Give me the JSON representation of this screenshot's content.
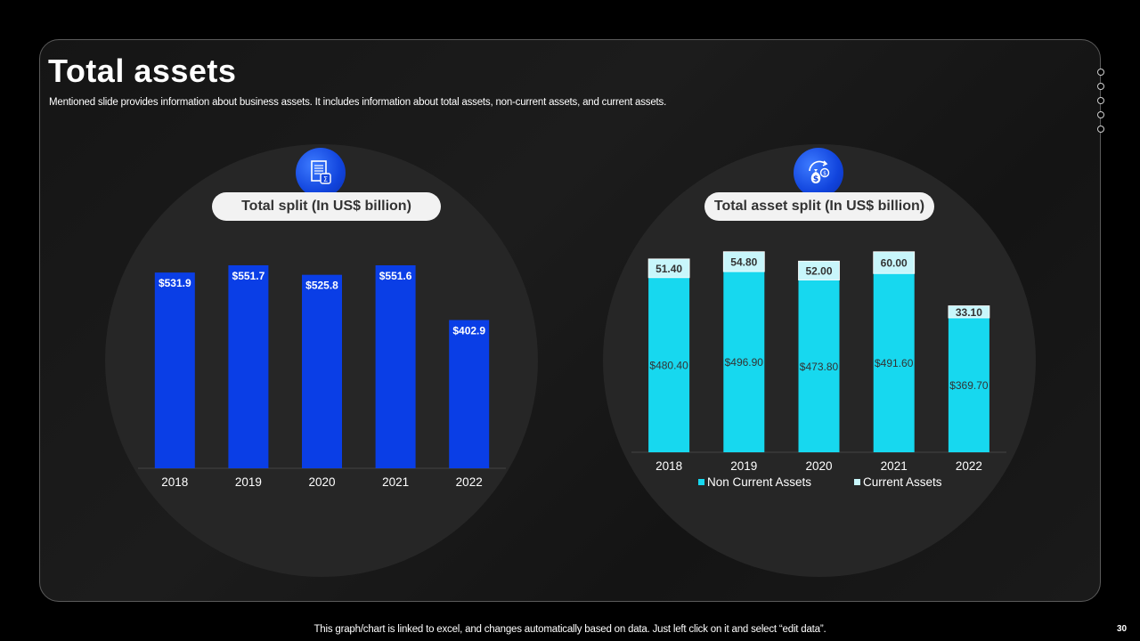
{
  "slide": {
    "title": "Total assets",
    "subtitle": "Mentioned slide provides information about business assets. It includes information about total assets, non-current assets, and current assets.",
    "footer": "This graph/chart is linked to excel,  and changes automatically based on data. Just left click on it and select “edit data”.",
    "page_number": "30"
  },
  "icons": {
    "left": "ledger-calculator-icon",
    "right": "money-bag-cycle-icon"
  },
  "colors": {
    "background": "#000000",
    "bar_blue": "#0a3ee6",
    "non_current": "#17d8ef",
    "current": "#c8f6fb"
  },
  "chart_data": [
    {
      "type": "bar",
      "title": "Total split (In US$ billion)",
      "categories": [
        "2018",
        "2019",
        "2020",
        "2021",
        "2022"
      ],
      "values": [
        531.9,
        551.7,
        525.8,
        551.6,
        402.9
      ],
      "data_labels": [
        "$531.9",
        "$551.7",
        "$525.8",
        "$551.6",
        "$402.9"
      ],
      "ylim": [
        0,
        600
      ],
      "xlabel": "",
      "ylabel": "",
      "grid": false
    },
    {
      "type": "bar",
      "stacked": true,
      "title": "Total asset split (In US$ billion)",
      "categories": [
        "2018",
        "2019",
        "2020",
        "2021",
        "2022"
      ],
      "series": [
        {
          "name": "Non Current Assets",
          "values": [
            480.4,
            496.9,
            473.8,
            491.6,
            369.7
          ],
          "data_labels": [
            "$480.40",
            "$496.90",
            "$473.80",
            "$491.60",
            "$369.70"
          ]
        },
        {
          "name": "Current Assets",
          "values": [
            51.4,
            54.8,
            52.0,
            60.0,
            33.1
          ],
          "data_labels": [
            "51.40",
            "54.80",
            "52.00",
            "60.00",
            "33.10"
          ]
        }
      ],
      "ylim": [
        0,
        600
      ],
      "legend": "bottom",
      "grid": false
    }
  ]
}
